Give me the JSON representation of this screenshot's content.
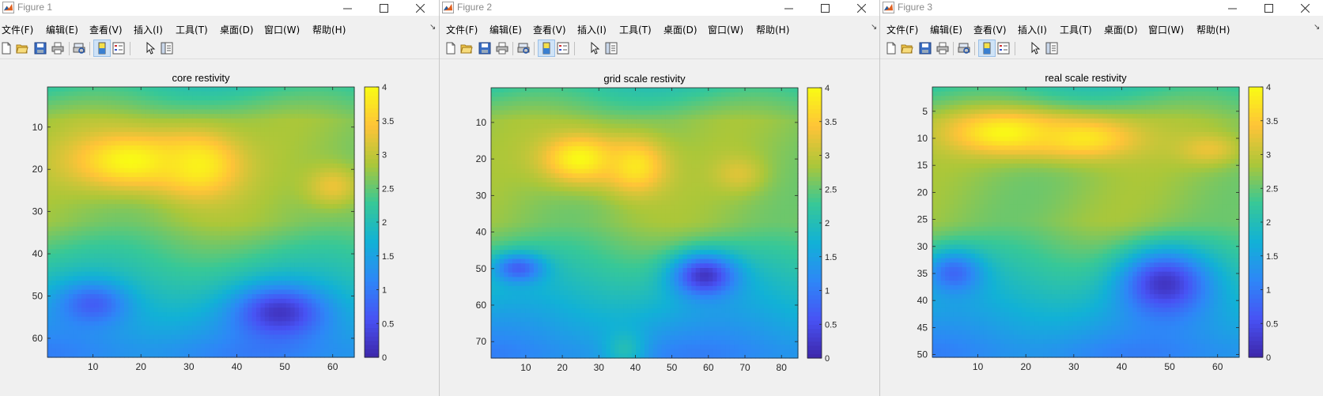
{
  "windows": [
    {
      "title": "Figure 1",
      "menu": [
        "文件(F)",
        "编辑(E)",
        "查看(V)",
        "插入(I)",
        "工具(T)",
        "桌面(D)",
        "窗口(W)",
        "帮助(H)"
      ],
      "chart_data": {
        "type": "heatmap",
        "title": "core restivity",
        "colormap": "parula",
        "x_range": [
          0.5,
          64.5
        ],
        "y_range": [
          0.5,
          64.5
        ],
        "x_ticks": [
          "10",
          "20",
          "30",
          "40",
          "50",
          "60"
        ],
        "y_ticks": [
          "10",
          "20",
          "30",
          "40",
          "50",
          "60"
        ],
        "color_range": [
          0,
          4
        ],
        "colorbar_ticks": [
          "0",
          "0.5",
          "1",
          "1.5",
          "2",
          "2.5",
          "3",
          "3.5",
          "4"
        ],
        "features": [
          {
            "x": 18,
            "y": 18,
            "value": 4.0,
            "spread_x": 13,
            "spread_y": 7
          },
          {
            "x": 32,
            "y": 19,
            "value": 3.9,
            "spread_x": 9,
            "spread_y": 8
          },
          {
            "x": 60,
            "y": 24,
            "value": 3.3,
            "spread_x": 6,
            "spread_y": 5
          },
          {
            "x": 49,
            "y": 54,
            "value": 0.2,
            "spread_x": 9,
            "spread_y": 6
          },
          {
            "x": 10,
            "y": 52,
            "value": 0.7,
            "spread_x": 7,
            "spread_y": 5
          }
        ]
      }
    },
    {
      "title": "Figure 2",
      "menu": [
        "文件(F)",
        "编辑(E)",
        "查看(V)",
        "插入(I)",
        "工具(T)",
        "桌面(D)",
        "窗口(W)",
        "帮助(H)"
      ],
      "chart_data": {
        "type": "heatmap",
        "title": "grid scale restivity",
        "colormap": "parula",
        "x_range": [
          0.5,
          84.5
        ],
        "y_range": [
          0.5,
          74.5
        ],
        "x_ticks": [
          "10",
          "20",
          "30",
          "40",
          "50",
          "60",
          "70",
          "80"
        ],
        "y_ticks": [
          "10",
          "20",
          "30",
          "40",
          "50",
          "60",
          "70"
        ],
        "color_range": [
          0,
          4
        ],
        "colorbar_ticks": [
          "0",
          "0.5",
          "1",
          "1.5",
          "2",
          "2.5",
          "3",
          "3.5",
          "4"
        ],
        "features": [
          {
            "x": 25,
            "y": 20,
            "value": 4.0,
            "spread_x": 11,
            "spread_y": 7
          },
          {
            "x": 40,
            "y": 22,
            "value": 3.8,
            "spread_x": 9,
            "spread_y": 8
          },
          {
            "x": 68,
            "y": 24,
            "value": 3.2,
            "spread_x": 7,
            "spread_y": 5
          },
          {
            "x": 59,
            "y": 52,
            "value": 0.2,
            "spread_x": 9,
            "spread_y": 6
          },
          {
            "x": 8,
            "y": 50,
            "value": 0.7,
            "spread_x": 7,
            "spread_y": 4
          },
          {
            "x": 37,
            "y": 72,
            "value": 2.0,
            "spread_x": 6,
            "spread_y": 6
          }
        ]
      }
    },
    {
      "title": "Figure 3",
      "menu": [
        "文件(F)",
        "编辑(E)",
        "查看(V)",
        "插入(I)",
        "工具(T)",
        "桌面(D)",
        "窗口(W)",
        "帮助(H)"
      ],
      "chart_data": {
        "type": "heatmap",
        "title": "real scale restivity",
        "colormap": "parula",
        "x_range": [
          0.5,
          64.5
        ],
        "y_range": [
          0.5,
          50.5
        ],
        "x_ticks": [
          "10",
          "20",
          "30",
          "40",
          "50",
          "60"
        ],
        "y_ticks": [
          "5",
          "10",
          "15",
          "20",
          "25",
          "30",
          "35",
          "40",
          "45",
          "50"
        ],
        "color_range": [
          0,
          4
        ],
        "colorbar_ticks": [
          "0",
          "0.5",
          "1",
          "1.5",
          "2",
          "2.5",
          "3",
          "3.5",
          "4"
        ],
        "features": [
          {
            "x": 16,
            "y": 9,
            "value": 4.0,
            "spread_x": 12,
            "spread_y": 4
          },
          {
            "x": 32,
            "y": 10,
            "value": 3.8,
            "spread_x": 12,
            "spread_y": 4
          },
          {
            "x": 58,
            "y": 12,
            "value": 3.3,
            "spread_x": 7,
            "spread_y": 3
          },
          {
            "x": 49,
            "y": 37,
            "value": 0.2,
            "spread_x": 9,
            "spread_y": 6
          },
          {
            "x": 5,
            "y": 35,
            "value": 0.8,
            "spread_x": 6,
            "spread_y": 4
          }
        ]
      }
    }
  ],
  "icons": {
    "app": "matlab-icon",
    "window_buttons": [
      "minimize-icon",
      "maximize-icon",
      "close-icon"
    ],
    "toolbar": [
      "new-figure-icon",
      "open-file-icon",
      "save-icon",
      "print-icon",
      "print-preview-icon",
      "colorbar-toggle-icon",
      "legend-toggle-icon",
      "edit-plot-icon",
      "property-inspector-icon"
    ]
  }
}
